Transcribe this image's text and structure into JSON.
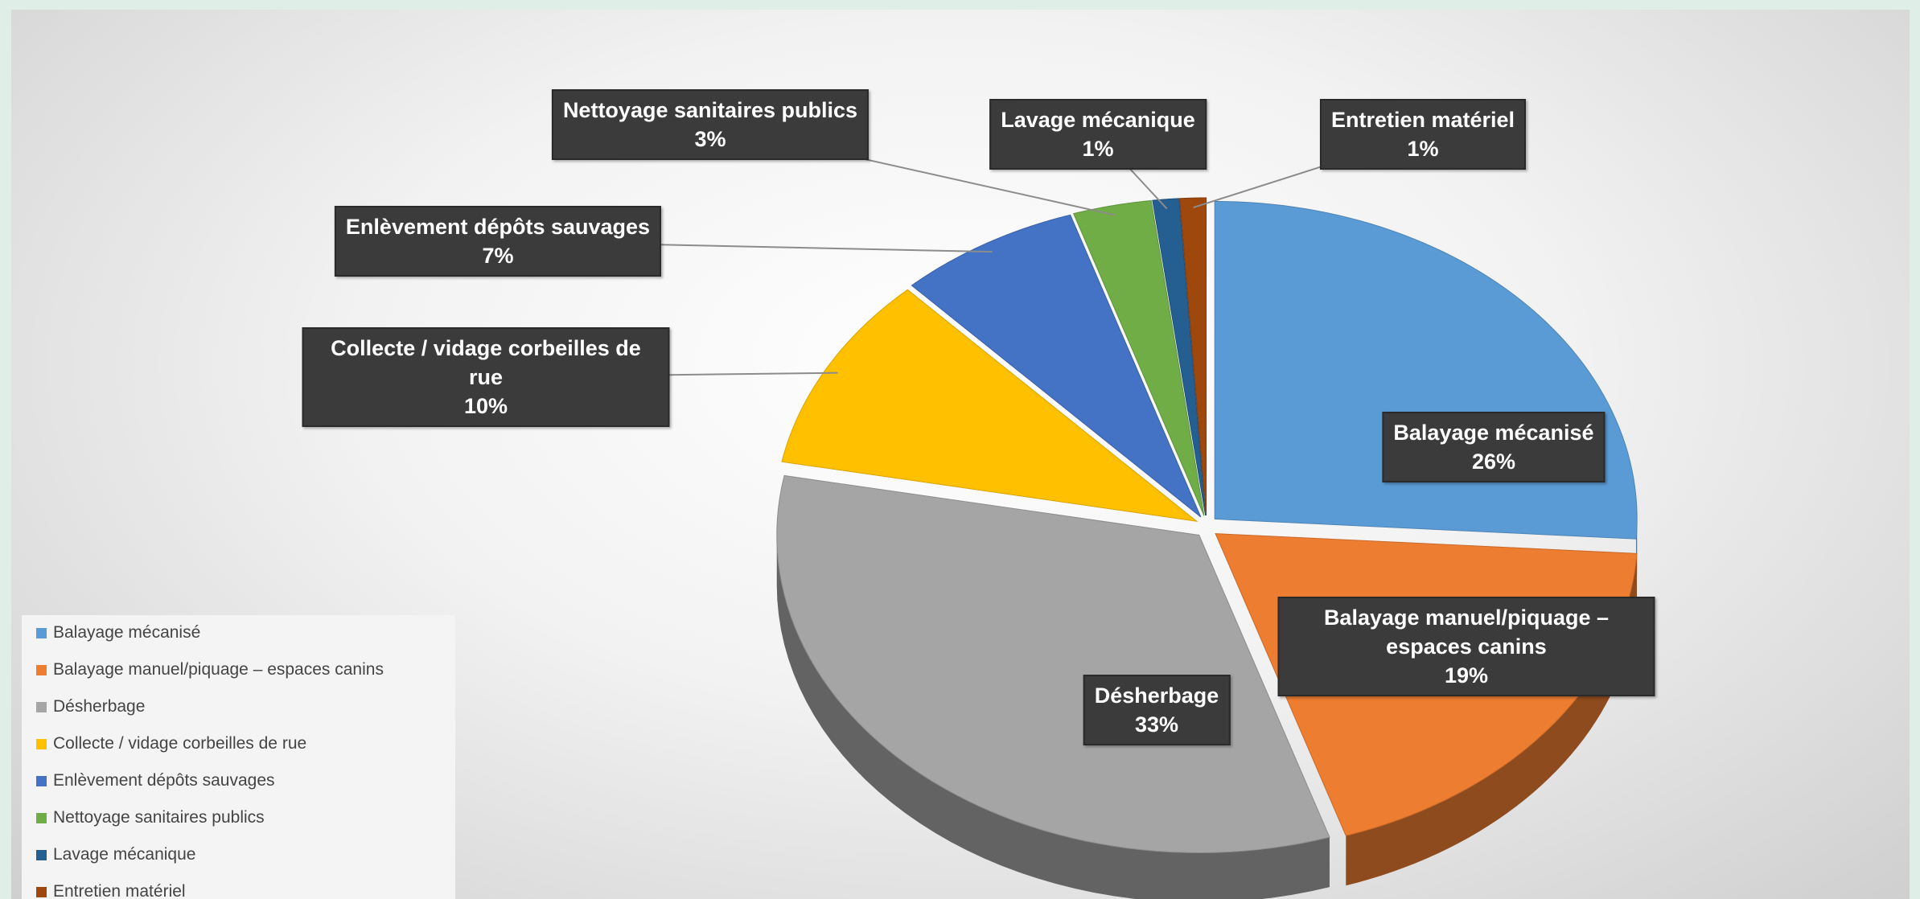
{
  "chart_data": {
    "type": "pie",
    "categories": [
      "Balayage mécanisé",
      "Balayage manuel/piquage – espaces canins",
      "Désherbage",
      "Collecte / vidage corbeilles de rue",
      "Enlèvement dépôts sauvages",
      "Nettoyage sanitaires publics",
      "Lavage mécanique",
      "Entretien matériel"
    ],
    "values": [
      26,
      19,
      33,
      10,
      7,
      3,
      1,
      1
    ],
    "value_labels": [
      "26%",
      "19%",
      "33%",
      "10%",
      "7%",
      "3%",
      "1%",
      "1%"
    ],
    "colors": [
      "#5b9bd5",
      "#ed7d31",
      "#a5a5a5",
      "#ffc000",
      "#4472c4",
      "#70ad47",
      "#255e91",
      "#9e480e"
    ],
    "legend": "bottom-left"
  }
}
